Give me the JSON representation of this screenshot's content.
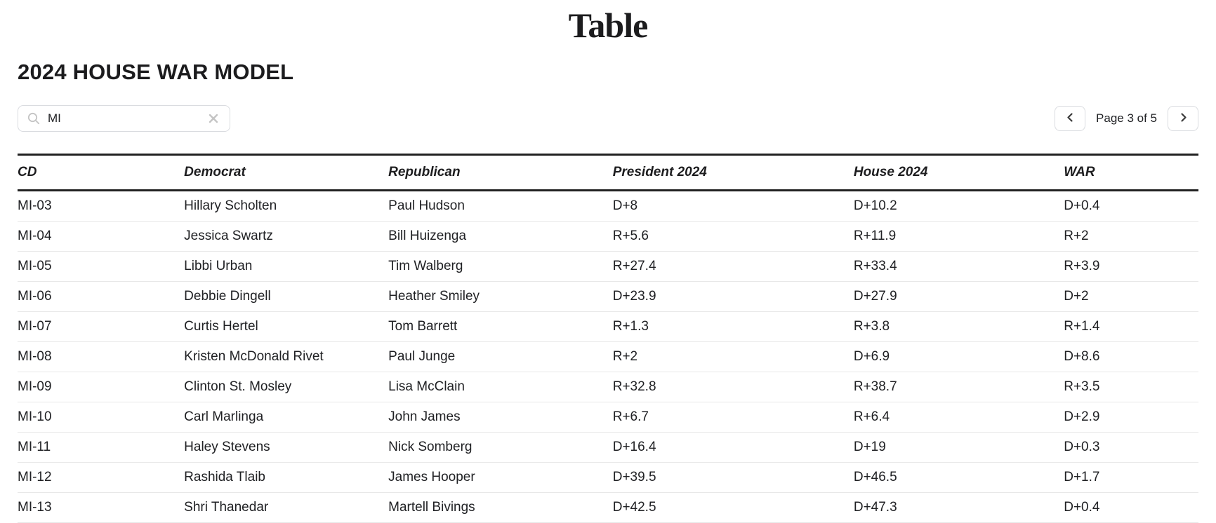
{
  "logo": {
    "text": "Table"
  },
  "title": "2024 HOUSE WAR MODEL",
  "search": {
    "value": "MI",
    "placeholder": "",
    "icon": "magnifier-icon",
    "clear_icon": "x-clear-icon"
  },
  "pagination": {
    "label": "Page 3 of 5",
    "prev_icon": "chevron-left",
    "next_icon": "chevron-right"
  },
  "table": {
    "columns": [
      "CD",
      "Democrat",
      "Republican",
      "President 2024",
      "House 2024",
      "WAR"
    ],
    "rows": [
      [
        "MI-03",
        "Hillary Scholten",
        "Paul Hudson",
        "D+8",
        "D+10.2",
        "D+0.4"
      ],
      [
        "MI-04",
        "Jessica Swartz",
        "Bill Huizenga",
        "R+5.6",
        "R+11.9",
        "R+2"
      ],
      [
        "MI-05",
        "Libbi Urban",
        "Tim Walberg",
        "R+27.4",
        "R+33.4",
        "R+3.9"
      ],
      [
        "MI-06",
        "Debbie Dingell",
        "Heather Smiley",
        "D+23.9",
        "D+27.9",
        "D+2"
      ],
      [
        "MI-07",
        "Curtis Hertel",
        "Tom Barrett",
        "R+1.3",
        "R+3.8",
        "R+1.4"
      ],
      [
        "MI-08",
        "Kristen McDonald Rivet",
        "Paul Junge",
        "R+2",
        "D+6.9",
        "D+8.6"
      ],
      [
        "MI-09",
        "Clinton St. Mosley",
        "Lisa McClain",
        "R+32.8",
        "R+38.7",
        "R+3.5"
      ],
      [
        "MI-10",
        "Carl Marlinga",
        "John James",
        "R+6.7",
        "R+6.4",
        "D+2.9"
      ],
      [
        "MI-11",
        "Haley Stevens",
        "Nick Somberg",
        "D+16.4",
        "D+19",
        "D+0.3"
      ],
      [
        "MI-12",
        "Rashida Tlaib",
        "James Hooper",
        "D+39.5",
        "D+46.5",
        "D+1.7"
      ],
      [
        "MI-13",
        "Shri Thanedar",
        "Martell Bivings",
        "D+42.5",
        "D+47.3",
        "D+0.4"
      ]
    ]
  },
  "colors": {
    "text": "#202124",
    "thick-line": "#212121",
    "divider": "#e8e8e8",
    "control-border": "#dadce0",
    "icon-gray": "#c4c4c4",
    "chevron": "#3a3a3a"
  }
}
